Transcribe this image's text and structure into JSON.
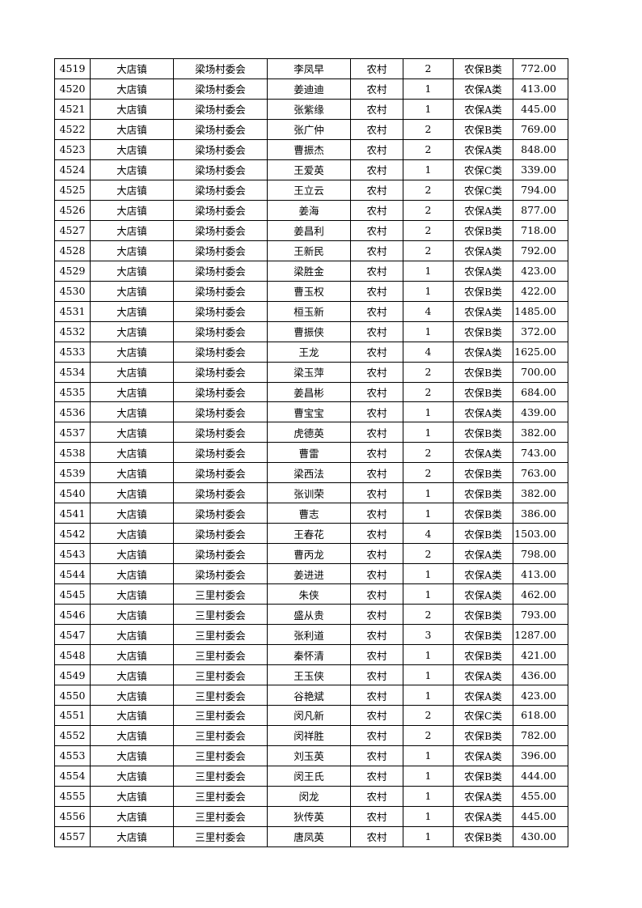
{
  "rows": [
    [
      "4519",
      "大店镇",
      "梁场村委会",
      "李凤早",
      "农村",
      "2",
      "农保B类",
      "772.00"
    ],
    [
      "4520",
      "大店镇",
      "梁场村委会",
      "姜迪迪",
      "农村",
      "1",
      "农保A类",
      "413.00"
    ],
    [
      "4521",
      "大店镇",
      "梁场村委会",
      "张紫缘",
      "农村",
      "1",
      "农保A类",
      "445.00"
    ],
    [
      "4522",
      "大店镇",
      "梁场村委会",
      "张广仲",
      "农村",
      "2",
      "农保B类",
      "769.00"
    ],
    [
      "4523",
      "大店镇",
      "梁场村委会",
      "曹振杰",
      "农村",
      "2",
      "农保A类",
      "848.00"
    ],
    [
      "4524",
      "大店镇",
      "梁场村委会",
      "王爱英",
      "农村",
      "1",
      "农保C类",
      "339.00"
    ],
    [
      "4525",
      "大店镇",
      "梁场村委会",
      "王立云",
      "农村",
      "2",
      "农保C类",
      "794.00"
    ],
    [
      "4526",
      "大店镇",
      "梁场村委会",
      "姜海",
      "农村",
      "2",
      "农保A类",
      "877.00"
    ],
    [
      "4527",
      "大店镇",
      "梁场村委会",
      "姜昌利",
      "农村",
      "2",
      "农保B类",
      "718.00"
    ],
    [
      "4528",
      "大店镇",
      "梁场村委会",
      "王新民",
      "农村",
      "2",
      "农保A类",
      "792.00"
    ],
    [
      "4529",
      "大店镇",
      "梁场村委会",
      "梁胜金",
      "农村",
      "1",
      "农保A类",
      "423.00"
    ],
    [
      "4530",
      "大店镇",
      "梁场村委会",
      "曹玉权",
      "农村",
      "1",
      "农保B类",
      "422.00"
    ],
    [
      "4531",
      "大店镇",
      "梁场村委会",
      "桓玉新",
      "农村",
      "4",
      "农保A类",
      "1485.00"
    ],
    [
      "4532",
      "大店镇",
      "梁场村委会",
      "曹振侠",
      "农村",
      "1",
      "农保B类",
      "372.00"
    ],
    [
      "4533",
      "大店镇",
      "梁场村委会",
      "王龙",
      "农村",
      "4",
      "农保A类",
      "1625.00"
    ],
    [
      "4534",
      "大店镇",
      "梁场村委会",
      "梁玉萍",
      "农村",
      "2",
      "农保B类",
      "700.00"
    ],
    [
      "4535",
      "大店镇",
      "梁场村委会",
      "姜昌彬",
      "农村",
      "2",
      "农保B类",
      "684.00"
    ],
    [
      "4536",
      "大店镇",
      "梁场村委会",
      "曹宝宝",
      "农村",
      "1",
      "农保A类",
      "439.00"
    ],
    [
      "4537",
      "大店镇",
      "梁场村委会",
      "虎德英",
      "农村",
      "1",
      "农保B类",
      "382.00"
    ],
    [
      "4538",
      "大店镇",
      "梁场村委会",
      "曹雷",
      "农村",
      "2",
      "农保A类",
      "743.00"
    ],
    [
      "4539",
      "大店镇",
      "梁场村委会",
      "梁西法",
      "农村",
      "2",
      "农保B类",
      "763.00"
    ],
    [
      "4540",
      "大店镇",
      "梁场村委会",
      "张训荣",
      "农村",
      "1",
      "农保B类",
      "382.00"
    ],
    [
      "4541",
      "大店镇",
      "梁场村委会",
      "曹志",
      "农村",
      "1",
      "农保B类",
      "386.00"
    ],
    [
      "4542",
      "大店镇",
      "梁场村委会",
      "王春花",
      "农村",
      "4",
      "农保B类",
      "1503.00"
    ],
    [
      "4543",
      "大店镇",
      "梁场村委会",
      "曹丙龙",
      "农村",
      "2",
      "农保A类",
      "798.00"
    ],
    [
      "4544",
      "大店镇",
      "梁场村委会",
      "姜进进",
      "农村",
      "1",
      "农保A类",
      "413.00"
    ],
    [
      "4545",
      "大店镇",
      "三里村委会",
      "朱侠",
      "农村",
      "1",
      "农保A类",
      "462.00"
    ],
    [
      "4546",
      "大店镇",
      "三里村委会",
      "盛从贵",
      "农村",
      "2",
      "农保B类",
      "793.00"
    ],
    [
      "4547",
      "大店镇",
      "三里村委会",
      "张利道",
      "农村",
      "3",
      "农保B类",
      "1287.00"
    ],
    [
      "4548",
      "大店镇",
      "三里村委会",
      "秦怀清",
      "农村",
      "1",
      "农保B类",
      "421.00"
    ],
    [
      "4549",
      "大店镇",
      "三里村委会",
      "王玉侠",
      "农村",
      "1",
      "农保A类",
      "436.00"
    ],
    [
      "4550",
      "大店镇",
      "三里村委会",
      "谷艳斌",
      "农村",
      "1",
      "农保A类",
      "423.00"
    ],
    [
      "4551",
      "大店镇",
      "三里村委会",
      "闵凡新",
      "农村",
      "2",
      "农保C类",
      "618.00"
    ],
    [
      "4552",
      "大店镇",
      "三里村委会",
      "闵祥胜",
      "农村",
      "2",
      "农保B类",
      "782.00"
    ],
    [
      "4553",
      "大店镇",
      "三里村委会",
      "刘玉英",
      "农村",
      "1",
      "农保A类",
      "396.00"
    ],
    [
      "4554",
      "大店镇",
      "三里村委会",
      "闵王氏",
      "农村",
      "1",
      "农保B类",
      "444.00"
    ],
    [
      "4555",
      "大店镇",
      "三里村委会",
      "闵龙",
      "农村",
      "1",
      "农保A类",
      "455.00"
    ],
    [
      "4556",
      "大店镇",
      "三里村委会",
      "狄传英",
      "农村",
      "1",
      "农保A类",
      "445.00"
    ],
    [
      "4557",
      "大店镇",
      "三里村委会",
      "唐凤英",
      "农村",
      "1",
      "农保B类",
      "430.00"
    ]
  ]
}
